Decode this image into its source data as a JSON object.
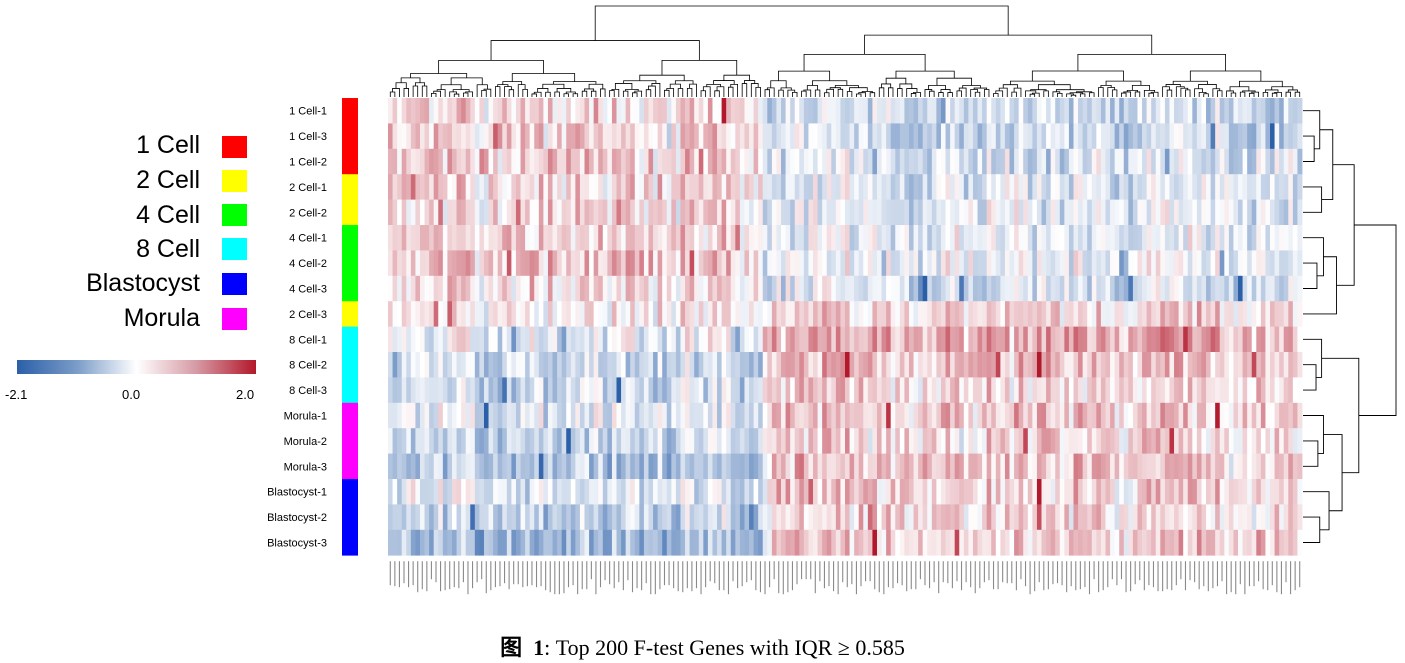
{
  "caption": {
    "prefix": "图",
    "number": "1",
    "text": ": Top 200 F-test Genes with IQR ≥ 0.585"
  },
  "legend": {
    "items": [
      {
        "label": "1 Cell",
        "color": "#ff0000"
      },
      {
        "label": "2 Cell",
        "color": "#ffff00"
      },
      {
        "label": "4 Cell",
        "color": "#00ff00"
      },
      {
        "label": "8 Cell",
        "color": "#00ffff"
      },
      {
        "label": "Blastocyst",
        "color": "#0000ff"
      },
      {
        "label": "Morula",
        "color": "#ff00ff"
      }
    ],
    "colorbar": {
      "min_label": "-2.1",
      "mid_label": "0.0",
      "max_label": "2.0",
      "low_color": "#2b5fa8",
      "mid_color": "#ffffff",
      "high_color": "#b2182b"
    }
  },
  "chart_data": {
    "type": "heatmap",
    "title": "Top 200 F-test Genes with IQR ≥ 0.585",
    "value_range": [
      -2.1,
      2.0
    ],
    "n_columns": 200,
    "column_labels_note": "gene labels too small to read",
    "rows": [
      {
        "label": "1 Cell-1",
        "group": "1 Cell"
      },
      {
        "label": "1 Cell-3",
        "group": "1 Cell"
      },
      {
        "label": "1 Cell-2",
        "group": "1 Cell"
      },
      {
        "label": "2 Cell-1",
        "group": "2 Cell"
      },
      {
        "label": "2 Cell-2",
        "group": "2 Cell"
      },
      {
        "label": "4 Cell-1",
        "group": "4 Cell"
      },
      {
        "label": "4 Cell-2",
        "group": "4 Cell"
      },
      {
        "label": "4 Cell-3",
        "group": "4 Cell"
      },
      {
        "label": "2 Cell-3",
        "group": "2 Cell"
      },
      {
        "label": "8 Cell-1",
        "group": "8 Cell"
      },
      {
        "label": "8 Cell-2",
        "group": "8 Cell"
      },
      {
        "label": "8 Cell-3",
        "group": "8 Cell"
      },
      {
        "label": "Morula-1",
        "group": "Morula"
      },
      {
        "label": "Morula-2",
        "group": "Morula"
      },
      {
        "label": "Morula-3",
        "group": "Morula"
      },
      {
        "label": "Blastocyst-1",
        "group": "Blastocyst"
      },
      {
        "label": "Blastocyst-2",
        "group": "Blastocyst"
      },
      {
        "label": "Blastocyst-3",
        "group": "Blastocyst"
      }
    ],
    "column_blocks": [
      {
        "columns": 82,
        "pattern": [
          0.25,
          0.35,
          0.4,
          0.3,
          0.25,
          0.35,
          0.45,
          0.2,
          0.1,
          -0.2,
          -0.5,
          -0.5,
          -0.3,
          -0.6,
          -0.8,
          -0.3,
          -0.6,
          -0.9
        ]
      },
      {
        "columns": 118,
        "pattern": [
          -0.45,
          -0.5,
          -0.3,
          -0.3,
          -0.25,
          -0.2,
          -0.2,
          -0.35,
          0.3,
          0.7,
          0.55,
          0.3,
          0.45,
          0.35,
          0.5,
          0.35,
          0.3,
          0.45
        ]
      }
    ],
    "group_colors": {
      "1 Cell": "#ff0000",
      "2 Cell": "#ffff00",
      "4 Cell": "#00ff00",
      "8 Cell": "#00ffff",
      "Morula": "#ff00ff",
      "Blastocyst": "#0000ff"
    }
  }
}
